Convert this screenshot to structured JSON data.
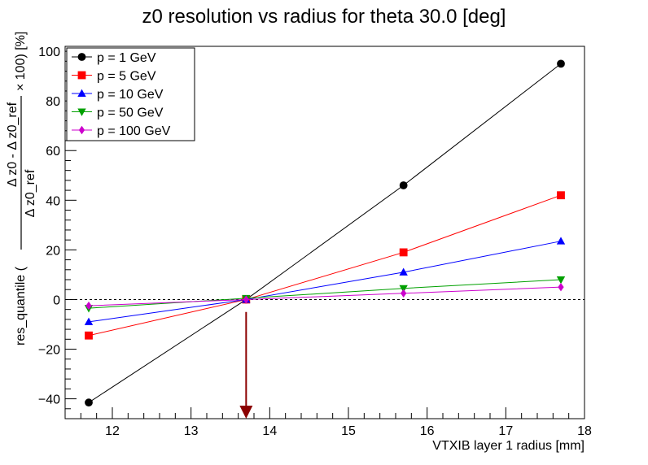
{
  "chart_data": {
    "type": "line",
    "title": "z0 resolution vs radius for theta 30.0 [deg]",
    "xlabel": "VTXIB layer 1 radius [mm]",
    "ylabel": {
      "prefix": "res_quantile (",
      "numerator": "Δ z0 -    Δ z0_ref",
      "denominator": "Δ z0_ref",
      "suffix": "× 100) [%]"
    },
    "xlim": [
      11.4,
      18.0
    ],
    "ylim": [
      -48,
      102
    ],
    "x_ticks": [
      12,
      13,
      14,
      15,
      16,
      17,
      18
    ],
    "y_ticks": [
      -40,
      -20,
      0,
      20,
      40,
      60,
      80,
      100
    ],
    "x_tick_labels": [
      "12",
      "13",
      "14",
      "15",
      "16",
      "17",
      "18"
    ],
    "y_tick_labels": [
      "−40",
      "−20",
      "0",
      "20",
      "40",
      "60",
      "80",
      "100"
    ],
    "x": [
      11.7,
      13.7,
      15.7,
      17.7
    ],
    "series": [
      {
        "name": "p = 1 GeV",
        "color": "#000000",
        "marker": "circle",
        "values": [
          -41.5,
          0,
          46,
          95
        ]
      },
      {
        "name": "p = 5 GeV",
        "color": "#ff0000",
        "marker": "square",
        "values": [
          -14.5,
          0,
          19,
          42
        ]
      },
      {
        "name": "p = 10 GeV",
        "color": "#0000ff",
        "marker": "triangle-up",
        "values": [
          -9,
          0,
          11,
          23.5
        ]
      },
      {
        "name": "p = 50 GeV",
        "color": "#00a000",
        "marker": "triangle-down",
        "values": [
          -3.5,
          0.5,
          4.5,
          8
        ]
      },
      {
        "name": "p = 100 GeV",
        "color": "#cc00cc",
        "marker": "diamond",
        "values": [
          -2.5,
          0,
          2.5,
          5
        ]
      }
    ],
    "reference_line": {
      "y": 0,
      "style": "dotted"
    },
    "arrow": {
      "x": 13.7,
      "from_y": -5,
      "to_y": -48,
      "color": "#8b0000"
    },
    "legend_position": "top-left",
    "grid": false
  }
}
